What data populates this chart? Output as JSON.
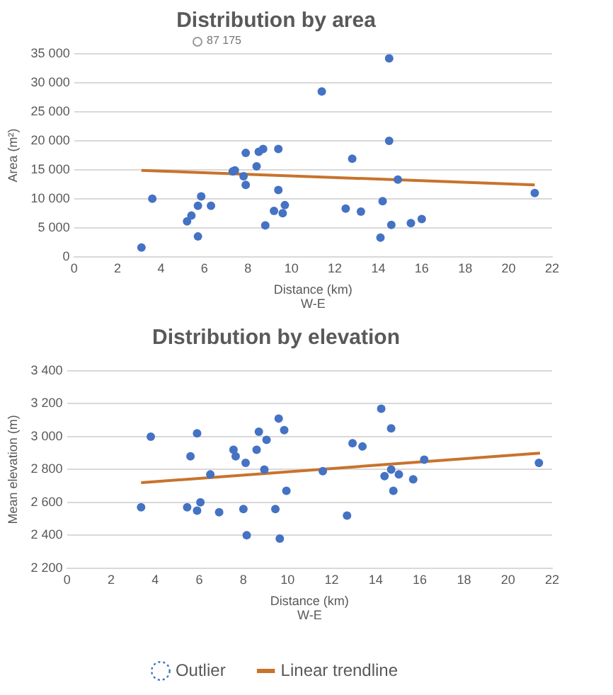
{
  "chart_data": [
    {
      "type": "scatter",
      "title": "Distribution by area",
      "xlabel": "Distance (km)\nW-E",
      "ylabel": "Area (m²)",
      "xlim": [
        0,
        22
      ],
      "xticks": [
        0,
        2,
        4,
        6,
        8,
        10,
        12,
        14,
        16,
        18,
        20,
        22
      ],
      "ylim": [
        0,
        35000
      ],
      "yticks": [
        0,
        {
          "value": 5000,
          "label": "5 000"
        },
        {
          "value": 10000,
          "label": "10 000"
        },
        {
          "value": 15000,
          "label": "15 000"
        },
        {
          "value": 20000,
          "label": "20 000"
        },
        {
          "value": 25000,
          "label": "25 000"
        },
        {
          "value": 30000,
          "label": "30 000"
        },
        {
          "value": 35000,
          "label": "35 000"
        }
      ],
      "grid": "y",
      "legend": false,
      "annotations": [
        "87 175"
      ],
      "series": [
        {
          "color": "#4472c4",
          "marker": "circle",
          "x": [
            3.1,
            3.6,
            5.2,
            5.4,
            5.7,
            5.7,
            5.85,
            6.3,
            7.3,
            7.4,
            7.8,
            7.9,
            7.9,
            8.4,
            8.5,
            8.7,
            8.8,
            9.2,
            9.4,
            9.4,
            9.6,
            9.7,
            11.4,
            12.5,
            12.8,
            13.2,
            14.1,
            14.2,
            14.5,
            14.5,
            14.6,
            14.9,
            15.5,
            16.0,
            21.2
          ],
          "values": [
            1600,
            10000,
            6100,
            7100,
            8800,
            3500,
            10400,
            8800,
            14700,
            14900,
            13900,
            17900,
            12400,
            15600,
            18100,
            18600,
            5400,
            7900,
            18600,
            11500,
            7500,
            8900,
            28500,
            8300,
            16900,
            7800,
            3300,
            9600,
            34200,
            20000,
            5500,
            13300,
            5800,
            6500,
            11000
          ]
        },
        {
          "type": "line",
          "color": "#c8732c",
          "x": [
            3.1,
            21.2
          ],
          "values": [
            14900,
            12400
          ]
        }
      ]
    },
    {
      "type": "scatter",
      "title": "Distribution by elevation",
      "xlabel": "Distance (km)\nW-E",
      "ylabel": "Mean elevation (m)",
      "xlim": [
        0,
        22
      ],
      "xticks": [
        0,
        2,
        4,
        6,
        8,
        10,
        12,
        14,
        16,
        18,
        20,
        22
      ],
      "ylim": [
        2200,
        3400
      ],
      "yticks": [
        {
          "value": 2200,
          "label": "2 200"
        },
        {
          "value": 2400,
          "label": "2 400"
        },
        {
          "value": 2600,
          "label": "2 600"
        },
        {
          "value": 2800,
          "label": "2 800"
        },
        {
          "value": 3000,
          "label": "3 000"
        },
        {
          "value": 3200,
          "label": "3 200"
        },
        {
          "value": 3400,
          "label": "3 400"
        }
      ],
      "grid": "y",
      "legend": "bottom",
      "series": [
        {
          "color": "#4472c4",
          "marker": "circle",
          "x": [
            3.36,
            3.8,
            5.6,
            5.9,
            5.45,
            5.9,
            6.05,
            6.5,
            6.9,
            7.55,
            7.65,
            8.1,
            8.0,
            8.15,
            8.6,
            8.7,
            9.05,
            8.95,
            9.6,
            9.85,
            9.45,
            9.65,
            9.95,
            11.6,
            12.7,
            12.95,
            13.4,
            14.25,
            14.4,
            14.7,
            14.7,
            14.8,
            15.05,
            15.7,
            16.2,
            21.4
          ],
          "values": [
            2570,
            3000,
            2880,
            3020,
            2570,
            2550,
            2600,
            2770,
            2540,
            2920,
            2880,
            2840,
            2560,
            2400,
            2920,
            3030,
            2980,
            2800,
            3110,
            3040,
            2560,
            2380,
            2670,
            2790,
            2520,
            2960,
            2940,
            3170,
            2760,
            3050,
            2800,
            2670,
            2770,
            2740,
            2860,
            2840
          ]
        },
        {
          "name": "Outlier",
          "color": "#4472c4",
          "marker": "circle",
          "line_style": "dotted"
        },
        {
          "type": "line",
          "name": "Linear trendline",
          "color": "#c8732c",
          "x": [
            3.36,
            21.45
          ],
          "values": [
            2720,
            2900
          ]
        }
      ]
    }
  ]
}
